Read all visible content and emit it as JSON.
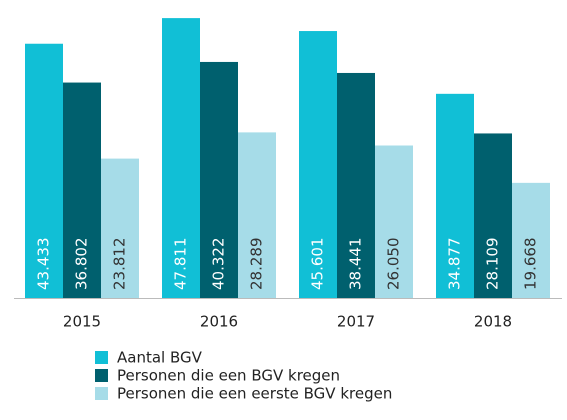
{
  "chart_data": {
    "type": "bar",
    "categories": [
      "2015",
      "2016",
      "2017",
      "2018"
    ],
    "series": [
      {
        "name": "Aantal BGV",
        "color": "#11bfd6",
        "label_color": "#ffffff",
        "values": [
          43433,
          47811,
          45601,
          34877
        ],
        "value_labels": [
          "43.433",
          "47.811",
          "45.601",
          "34.877"
        ]
      },
      {
        "name": "Personen die een BGV kregen",
        "color": "#00606e",
        "label_color": "#ffffff",
        "values": [
          36802,
          40322,
          38441,
          28109
        ],
        "value_labels": [
          "36.802",
          "40.322",
          "38.441",
          "28.109"
        ]
      },
      {
        "name": "Personen die een eerste BGV kregen",
        "color": "#a6dce8",
        "label_color": "#333333",
        "values": [
          23812,
          28289,
          26050,
          19668
        ],
        "value_labels": [
          "23.812",
          "28.289",
          "26.050",
          "19.668"
        ]
      }
    ],
    "ylim": [
      0,
      48000
    ]
  }
}
